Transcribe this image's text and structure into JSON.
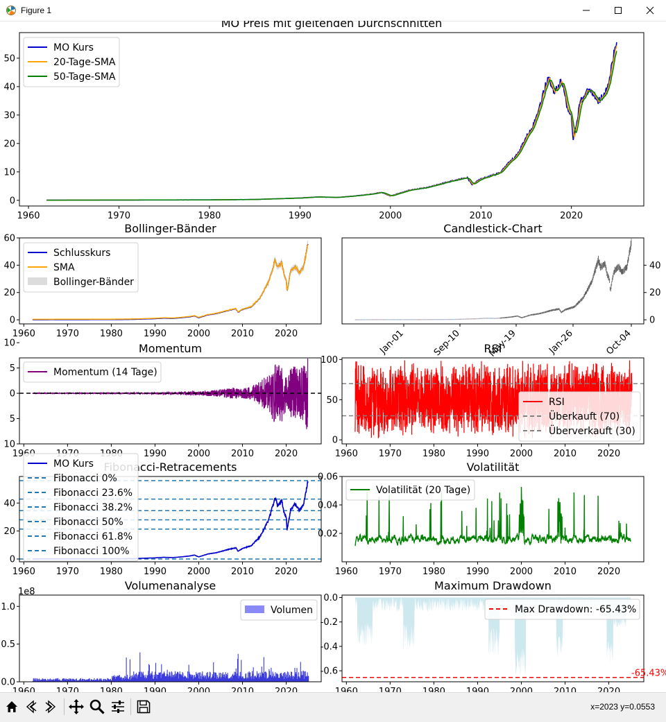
{
  "window": {
    "title": "Figure 1"
  },
  "toolbar": {
    "buttons": [
      "home-icon",
      "back-icon",
      "forward-icon",
      "pan-icon",
      "zoom-icon",
      "configure-subplots-icon",
      "save-icon"
    ],
    "coords": "x=2023 y=0.0553"
  },
  "chart_data": [
    {
      "id": "price",
      "type": "line",
      "title": "MO Preis mit gleitenden Durchschnitten",
      "x_ticks": [
        "1960",
        "1970",
        "1980",
        "1990",
        "2000",
        "2010",
        "2020"
      ],
      "y_ticks": [
        "0",
        "10",
        "20",
        "30",
        "40",
        "50"
      ],
      "xlim": [
        1959,
        2028
      ],
      "ylim": [
        -2,
        59
      ],
      "series": [
        {
          "name": "MO Kurs",
          "color": "#0000cc"
        },
        {
          "name": "20-Tage-SMA",
          "color": "#ffa500"
        },
        {
          "name": "50-Tage-SMA",
          "color": "#008000"
        }
      ],
      "x": [
        1962,
        1970,
        1980,
        1985,
        1990,
        1992,
        1994,
        1996,
        1998,
        1999,
        2000,
        2002,
        2004,
        2007,
        2008.5,
        2009,
        2010,
        2012,
        2014,
        2016,
        2017.5,
        2018,
        2019,
        2019.5,
        2020,
        2020.2,
        2021,
        2022,
        2023,
        2024,
        2024.5,
        2025
      ],
      "y": [
        0.05,
        0.1,
        0.15,
        0.3,
        0.8,
        1.2,
        1.0,
        1.5,
        2.2,
        2.8,
        1.5,
        3.5,
        4.5,
        7.0,
        8.0,
        5.5,
        7.5,
        9.5,
        16.0,
        28.0,
        44.0,
        38.0,
        42.0,
        33.0,
        30.0,
        21.0,
        35.0,
        39.0,
        35.0,
        39.0,
        48.0,
        56.0
      ],
      "legend": "upper-left"
    },
    {
      "id": "bollinger",
      "type": "line",
      "title": "Bollinger-Bänder",
      "x_ticks": [
        "1960",
        "1970",
        "1980",
        "1990",
        "2000",
        "2010",
        "2020"
      ],
      "y_ticks": [
        "0",
        "20",
        "40",
        "60"
      ],
      "xlim": [
        1959,
        2028
      ],
      "ylim": [
        -3,
        60
      ],
      "series": [
        {
          "name": "Schlusskurs",
          "color": "#0000cc"
        },
        {
          "name": "SMA",
          "color": "#ffa500"
        },
        {
          "name": "Bollinger-Bänder",
          "color": "#d3d3d3"
        }
      ],
      "legend": "upper-left"
    },
    {
      "id": "candlestick",
      "type": "line",
      "title": "Candlestick-Chart",
      "x_ticks": [
        "Jan-01",
        "Sep-10",
        "May-19",
        "Jan-26",
        "Oct-04"
      ],
      "y_ticks": [
        "0",
        "20",
        "40"
      ],
      "ylim": [
        -3,
        60
      ]
    },
    {
      "id": "momentum",
      "type": "line",
      "title": "Momentum",
      "x_ticks": [
        "1960",
        "1970",
        "1980",
        "1990",
        "2000",
        "2010",
        "2020"
      ],
      "y_ticks": [
        "10",
        "5",
        "0",
        "5",
        "10"
      ],
      "xlim": [
        1959,
        2028
      ],
      "ylim": [
        -10,
        7
      ],
      "series": [
        {
          "name": "Momentum (14 Tage)",
          "color": "#800080"
        }
      ],
      "legend": "upper-left"
    },
    {
      "id": "rsi",
      "type": "line",
      "title": "RSI",
      "x_ticks": [
        "1960",
        "1970",
        "1980",
        "1990",
        "2000",
        "2010",
        "2020"
      ],
      "y_ticks": [
        "0",
        "50",
        "100"
      ],
      "xlim": [
        1959,
        2028
      ],
      "ylim": [
        -5,
        102
      ],
      "series": [
        {
          "name": "RSI",
          "color": "#ff0000"
        },
        {
          "name": "Überkauft (70)",
          "color": "#808080",
          "value": 70
        },
        {
          "name": "Überverkauft (30)",
          "color": "#808080",
          "value": 30
        }
      ],
      "legend": "center-right"
    },
    {
      "id": "fibonacci",
      "type": "line",
      "title": "Fibonacci-Retracements",
      "x_ticks": [
        "1960",
        "1970",
        "1980",
        "1990",
        "2000",
        "2010",
        "2020"
      ],
      "y_ticks": [
        "0",
        "20",
        "40"
      ],
      "xlim": [
        1959,
        2028
      ],
      "ylim": [
        -2,
        59
      ],
      "series": [
        {
          "name": "MO Kurs",
          "color": "#0000cc"
        },
        {
          "name": "Fibonacci 0%",
          "color": "#1f77b4",
          "value": 56.0
        },
        {
          "name": "Fibonacci 23.6%",
          "color": "#1f77b4",
          "value": 42.8
        },
        {
          "name": "Fibonacci 38.2%",
          "color": "#1f77b4",
          "value": 34.6
        },
        {
          "name": "Fibonacci 50%",
          "color": "#1f77b4",
          "value": 28.0
        },
        {
          "name": "Fibonacci 61.8%",
          "color": "#1f77b4",
          "value": 21.4
        },
        {
          "name": "Fibonacci 100%",
          "color": "#1f77b4",
          "value": 0.0
        }
      ],
      "legend": "upper-left"
    },
    {
      "id": "volatility",
      "type": "line",
      "title": "Volatilität",
      "x_ticks": [
        "1960",
        "1970",
        "1980",
        "1990",
        "2000",
        "2010",
        "2020"
      ],
      "y_ticks": [
        "0.02",
        "0.04",
        "0.06"
      ],
      "xlim": [
        1959,
        2028
      ],
      "ylim": [
        0.0,
        0.06
      ],
      "series": [
        {
          "name": "Volatilität (20 Tage)",
          "color": "#008000"
        }
      ],
      "legend": "upper-left"
    },
    {
      "id": "volume",
      "type": "bar",
      "title": "Volumenanalyse",
      "x_ticks": [
        "1960",
        "1970",
        "1980",
        "1990",
        "2000",
        "2010",
        "2020"
      ],
      "y_ticks": [
        "0.0",
        "0.5",
        "1.0"
      ],
      "y_offset_label": "1e8",
      "xlim": [
        1959,
        2028
      ],
      "ylim": [
        0,
        1.15
      ],
      "series": [
        {
          "name": "Volumen",
          "color": "#6b6bf5"
        }
      ],
      "legend": "upper-right"
    },
    {
      "id": "drawdown",
      "type": "area",
      "title": "Maximum Drawdown",
      "x_ticks": [
        "1960",
        "1970",
        "1980",
        "1990",
        "2000",
        "2010",
        "2020"
      ],
      "y_ticks": [
        "0.0",
        "-0.2",
        "-0.4",
        "-0.6"
      ],
      "xlim": [
        1959,
        2028
      ],
      "ylim": [
        -0.69,
        0.02
      ],
      "series": [
        {
          "name": "Max Drawdown: -65.43%",
          "color": "#ff0000",
          "value": -0.6543
        }
      ],
      "annotation": "-65.43%",
      "fill_color": "#add8e6",
      "legend": "upper-right"
    }
  ]
}
